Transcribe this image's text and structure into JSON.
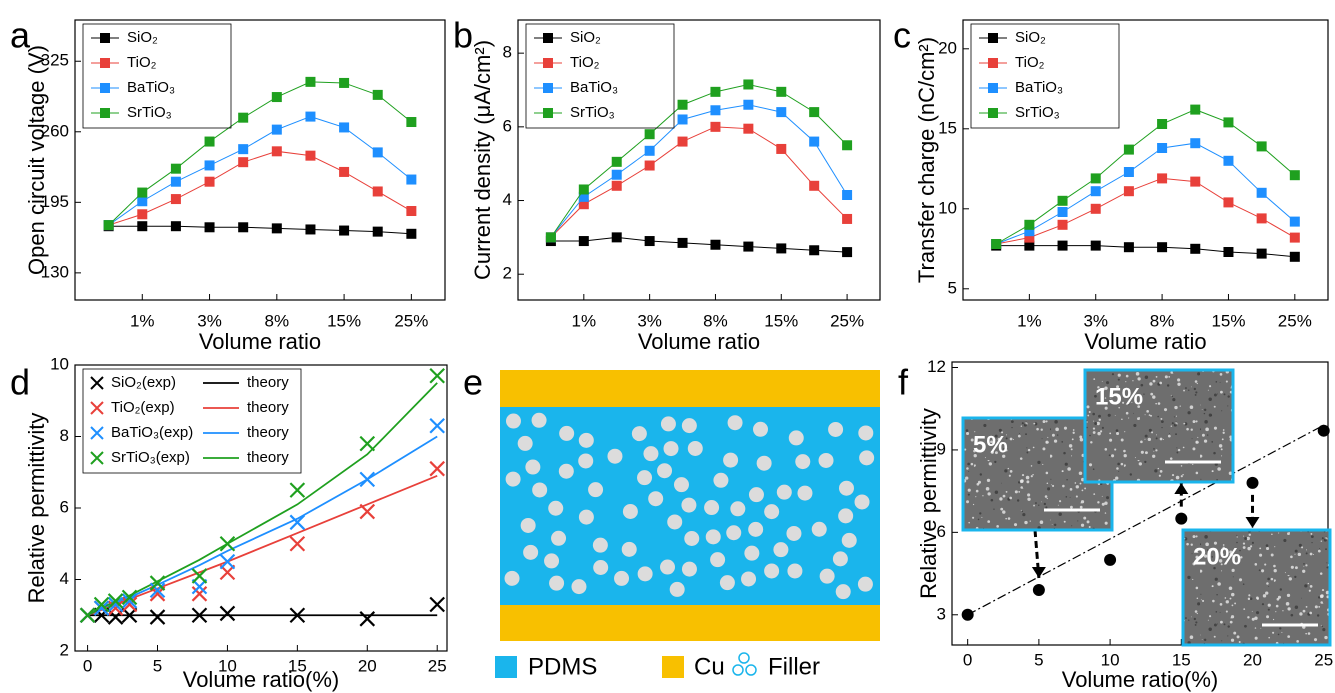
{
  "chart_data": [
    {
      "type": "line",
      "label": "a",
      "ylabel": "Open circuit voltage (V)",
      "xlabel": "Volume ratio",
      "categories": [
        null,
        "1%",
        null,
        "3%",
        null,
        "8%",
        null,
        "15%",
        null,
        "25%"
      ],
      "ylim": [
        105,
        363
      ],
      "yticks": [
        130,
        195,
        260,
        325
      ],
      "legend": "upper left",
      "series": [
        {
          "name": "SiO₂",
          "color": "#000000",
          "values": [
            173,
            173,
            173,
            172,
            172,
            171,
            170,
            169,
            168,
            166
          ]
        },
        {
          "name": "TiO₂",
          "color": "#e8403a",
          "values": [
            174,
            184,
            198,
            214,
            232,
            242,
            238,
            223,
            205,
            187
          ]
        },
        {
          "name": "BaTiO₃",
          "color": "#1e8fff",
          "values": [
            174,
            196,
            214,
            229,
            244,
            262,
            274,
            264,
            241,
            216
          ]
        },
        {
          "name": "SrTiO₃",
          "color": "#1fa01f",
          "values": [
            174,
            204,
            226,
            251,
            273,
            292,
            306,
            305,
            294,
            269
          ]
        }
      ]
    },
    {
      "type": "line",
      "label": "b",
      "ylabel": "Current density (μA/cm²)",
      "xlabel": "Volume ratio",
      "categories": [
        null,
        "1%",
        null,
        "3%",
        null,
        "8%",
        null,
        "15%",
        null,
        "25%"
      ],
      "ylim": [
        1.3,
        8.9
      ],
      "yticks": [
        2,
        4,
        6,
        8
      ],
      "legend": "upper left",
      "series": [
        {
          "name": "SiO₂",
          "color": "#000000",
          "values": [
            2.9,
            2.9,
            3.0,
            2.9,
            2.85,
            2.8,
            2.75,
            2.7,
            2.65,
            2.6
          ]
        },
        {
          "name": "TiO₂",
          "color": "#e8403a",
          "values": [
            3.0,
            3.9,
            4.4,
            4.95,
            5.6,
            6.0,
            5.95,
            5.4,
            4.4,
            3.5
          ]
        },
        {
          "name": "BaTiO₃",
          "color": "#1e8fff",
          "values": [
            3.0,
            4.1,
            4.7,
            5.35,
            6.2,
            6.45,
            6.6,
            6.4,
            5.6,
            4.15
          ]
        },
        {
          "name": "SrTiO₃",
          "color": "#1fa01f",
          "values": [
            3.0,
            4.3,
            5.05,
            5.8,
            6.6,
            6.95,
            7.15,
            6.95,
            6.4,
            5.5
          ]
        }
      ]
    },
    {
      "type": "line",
      "label": "c",
      "ylabel": "Transfer charge (nC/cm²)",
      "xlabel": "Volume ratio",
      "categories": [
        null,
        "1%",
        null,
        "3%",
        null,
        "8%",
        null,
        "15%",
        null,
        "25%"
      ],
      "ylim": [
        4.3,
        21.8
      ],
      "yticks": [
        5,
        10,
        15,
        20
      ],
      "legend": "upper left",
      "series": [
        {
          "name": "SiO₂",
          "color": "#000000",
          "values": [
            7.7,
            7.7,
            7.7,
            7.7,
            7.6,
            7.6,
            7.5,
            7.3,
            7.2,
            7.0
          ]
        },
        {
          "name": "TiO₂",
          "color": "#e8403a",
          "values": [
            7.8,
            8.2,
            9.0,
            10.0,
            11.1,
            11.9,
            11.7,
            10.4,
            9.4,
            8.2
          ]
        },
        {
          "name": "BaTiO₃",
          "color": "#1e8fff",
          "values": [
            7.8,
            8.6,
            9.8,
            11.1,
            12.3,
            13.8,
            14.1,
            13.0,
            11.0,
            9.2
          ]
        },
        {
          "name": "SrTiO₃",
          "color": "#1fa01f",
          "values": [
            7.8,
            9.0,
            10.5,
            11.9,
            13.7,
            15.3,
            16.2,
            15.4,
            13.9,
            12.1
          ]
        }
      ]
    },
    {
      "type": "scatter",
      "label": "d",
      "ylabel": "Relative permittivity",
      "xlabel": "Volume ratio(%)",
      "x": [
        0,
        1,
        2,
        3,
        5,
        8,
        10,
        15,
        20,
        25
      ],
      "xlim": [
        -0.9,
        25.7
      ],
      "xticks": [
        0,
        5,
        10,
        15,
        20,
        25
      ],
      "ylim": [
        2,
        10
      ],
      "yticks": [
        2,
        4,
        6,
        8,
        10
      ],
      "legend": "upper left",
      "series": [
        {
          "name": "SiO₂(exp)",
          "color": "#000000",
          "marker": "x",
          "values": [
            3.0,
            3.0,
            2.95,
            3.0,
            2.95,
            3.0,
            3.05,
            3.0,
            2.9,
            3.3
          ]
        },
        {
          "name": "theory",
          "color": "#000000",
          "marker": "none",
          "values": [
            3.0,
            3.0,
            3.0,
            3.0,
            3.0,
            3.0,
            3.0,
            3.0,
            3.0,
            3.0
          ]
        },
        {
          "name": "TiO₂(exp)",
          "color": "#e8403a",
          "marker": "x",
          "values": [
            3.0,
            3.2,
            3.2,
            3.3,
            3.6,
            3.6,
            4.2,
            5.0,
            5.9,
            7.1
          ]
        },
        {
          "name": "theory",
          "color": "#e8403a",
          "marker": "none",
          "values": [
            3.0,
            3.15,
            3.3,
            3.45,
            3.75,
            4.2,
            4.5,
            5.3,
            6.1,
            6.9
          ]
        },
        {
          "name": "BaTiO₃(exp)",
          "color": "#1e8fff",
          "marker": "x",
          "values": [
            3.0,
            3.2,
            3.3,
            3.4,
            3.7,
            3.8,
            4.5,
            5.6,
            6.8,
            8.3
          ]
        },
        {
          "name": "theory",
          "color": "#1e8fff",
          "marker": "none",
          "values": [
            3.0,
            3.2,
            3.35,
            3.5,
            3.85,
            4.4,
            4.8,
            5.7,
            6.8,
            8.0
          ]
        },
        {
          "name": "SrTiO₃(exp)",
          "color": "#1fa01f",
          "marker": "x",
          "values": [
            3.0,
            3.3,
            3.4,
            3.5,
            3.9,
            4.1,
            5.0,
            6.5,
            7.8,
            9.7
          ]
        },
        {
          "name": "theory",
          "color": "#1fa01f",
          "marker": "none",
          "values": [
            3.0,
            3.2,
            3.4,
            3.55,
            3.95,
            4.55,
            5.0,
            6.1,
            7.5,
            9.5
          ]
        }
      ]
    },
    {
      "type": "scatter",
      "label": "f",
      "ylabel": "Relative permittivity",
      "xlabel": "Volume ratio(%)",
      "x": [
        0,
        5,
        10,
        15,
        20,
        25
      ],
      "xlim": [
        -1.1,
        25.3
      ],
      "xticks": [
        0,
        5,
        10,
        15,
        20,
        25
      ],
      "ylim": [
        1.9,
        12.2
      ],
      "yticks": [
        3,
        6,
        9,
        12
      ],
      "series": [
        {
          "color": "#000000",
          "marker": "circle",
          "values": [
            3.0,
            3.9,
            5.0,
            6.5,
            7.8,
            9.7
          ]
        }
      ],
      "fit": {
        "x": [
          0,
          25
        ],
        "values": [
          3.0,
          9.9
        ]
      },
      "insets": [
        {
          "label": "5%"
        },
        {
          "label": "15%"
        },
        {
          "label": "20%"
        }
      ]
    }
  ],
  "diagram": {
    "label": "e",
    "legend": [
      "PDMS",
      "Cu",
      "Filler"
    ]
  }
}
